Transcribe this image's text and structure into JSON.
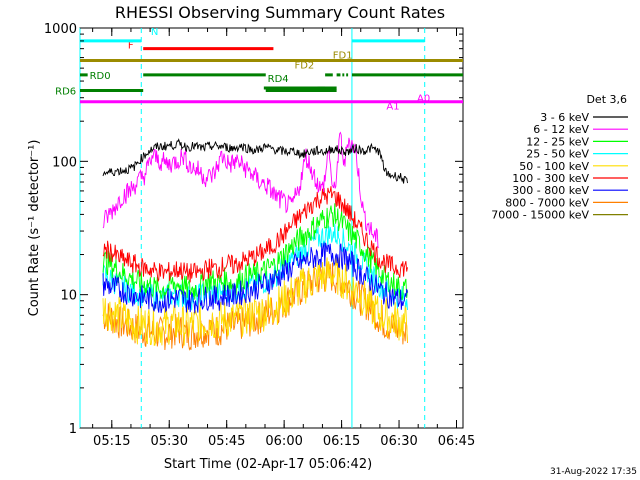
{
  "chart_data": {
    "type": "line",
    "title": "RHESSI Observing Summary Count Rates",
    "xlabel": "Start Time (02-Apr-17 05:06:42)",
    "ylabel": "Count Rate (s⁻¹ detector⁻¹)",
    "y_scale": "log",
    "xlim_minutes": [
      0,
      100
    ],
    "ylim": [
      1,
      1000
    ],
    "x_ticks": [
      {
        "t": 8.3,
        "label": "05:15"
      },
      {
        "t": 23.3,
        "label": "05:30"
      },
      {
        "t": 38.3,
        "label": "05:45"
      },
      {
        "t": 53.3,
        "label": "06:00"
      },
      {
        "t": 68.3,
        "label": "06:15"
      },
      {
        "t": 83.3,
        "label": "06:30"
      },
      {
        "t": 98.3,
        "label": "06:45"
      }
    ],
    "y_ticks": [
      {
        "v": 1,
        "label": "1"
      },
      {
        "v": 10,
        "label": "10"
      },
      {
        "v": 100,
        "label": "100"
      },
      {
        "v": 1000,
        "label": "1000"
      }
    ],
    "legend_title": "Det 3,6",
    "legend_position": "right",
    "series": [
      {
        "name": "3 - 6 keV",
        "color": "#000000",
        "x": [
          6,
          6.2,
          8,
          10,
          12,
          14,
          16,
          18,
          20,
          22,
          24,
          26,
          28,
          30,
          32,
          34,
          36,
          38,
          40,
          42,
          44,
          46,
          48,
          50,
          52,
          54,
          56,
          58,
          60,
          62,
          64,
          66,
          68,
          70,
          72,
          74,
          76,
          78,
          80,
          82,
          84,
          85.5
        ],
        "y": [
          80,
          82,
          83,
          85,
          86,
          90,
          105,
          120,
          128,
          130,
          132,
          135,
          128,
          130,
          125,
          130,
          130,
          128,
          125,
          130,
          125,
          120,
          128,
          125,
          120,
          118,
          120,
          112,
          118,
          120,
          118,
          125,
          120,
          118,
          125,
          120,
          125,
          120,
          80,
          78,
          76,
          68
        ]
      },
      {
        "name": "6 - 12 keV",
        "color": "#ff00ff",
        "x": [
          6,
          7,
          9,
          11,
          13,
          15,
          17,
          19,
          21,
          23,
          25,
          27,
          29,
          31,
          33,
          35,
          37,
          39,
          41,
          43,
          45,
          47,
          49,
          51,
          53,
          55,
          57,
          59,
          61,
          63,
          64,
          65,
          66,
          67,
          68,
          69,
          70,
          72,
          74,
          76,
          78
        ],
        "y": [
          34,
          38,
          45,
          55,
          60,
          70,
          80,
          110,
          100,
          95,
          100,
          110,
          90,
          85,
          75,
          80,
          110,
          95,
          100,
          90,
          80,
          70,
          65,
          55,
          50,
          45,
          60,
          110,
          80,
          60,
          75,
          130,
          55,
          80,
          160,
          90,
          150,
          120,
          40,
          30,
          25
        ]
      },
      {
        "name": "12 - 25 keV",
        "color": "#00ff00",
        "x": [
          6,
          8,
          10,
          12,
          14,
          16,
          18,
          20,
          22,
          24,
          26,
          28,
          30,
          32,
          34,
          36,
          38,
          40,
          42,
          44,
          46,
          48,
          50,
          52,
          54,
          56,
          58,
          60,
          62,
          64,
          66,
          68,
          70,
          72,
          74,
          76,
          78,
          80,
          82,
          84,
          85.5
        ],
        "y": [
          18,
          17,
          15,
          14,
          13,
          12,
          12,
          11,
          11,
          12,
          12,
          11,
          11,
          12,
          13,
          12,
          13,
          12,
          13,
          14,
          14,
          15,
          16,
          18,
          21,
          24,
          27,
          30,
          34,
          38,
          40,
          36,
          30,
          26,
          22,
          18,
          15,
          13,
          12,
          11,
          11
        ]
      },
      {
        "name": "25 - 50 keV",
        "color": "#00ffff",
        "x": [
          6,
          8,
          10,
          12,
          14,
          16,
          18,
          20,
          22,
          24,
          26,
          28,
          30,
          32,
          34,
          36,
          38,
          40,
          42,
          44,
          46,
          48,
          50,
          52,
          54,
          56,
          58,
          60,
          62,
          64,
          66,
          68,
          70,
          72,
          74,
          76,
          78,
          80,
          82,
          84,
          85.5
        ],
        "y": [
          14,
          13,
          12,
          11,
          10.5,
          10,
          10,
          9.5,
          9.5,
          10,
          10,
          9.5,
          9.5,
          10,
          10.5,
          10,
          11,
          10.5,
          11,
          11.5,
          12,
          12.5,
          13,
          15,
          17,
          19,
          21,
          24,
          26,
          28,
          29,
          27,
          23,
          20,
          17,
          14,
          12,
          11,
          10,
          9.5,
          9.5
        ]
      },
      {
        "name": "50 - 100 keV",
        "color": "#ffdd00",
        "x": [
          6,
          8,
          10,
          12,
          14,
          16,
          18,
          20,
          22,
          24,
          26,
          28,
          30,
          32,
          34,
          36,
          38,
          40,
          42,
          44,
          46,
          48,
          50,
          52,
          54,
          56,
          58,
          60,
          62,
          64,
          66,
          68,
          70,
          72,
          74,
          76,
          78,
          80,
          82,
          84,
          85.5
        ],
        "y": [
          8,
          7.5,
          7,
          6.5,
          6,
          6,
          6,
          5.8,
          5.8,
          6,
          6,
          5.8,
          6,
          6.2,
          6.5,
          6.3,
          6.6,
          6.5,
          6.8,
          7,
          7.2,
          7.5,
          8,
          8.5,
          9.5,
          10.5,
          11.5,
          12.5,
          13.5,
          14,
          14.5,
          13.5,
          12,
          11,
          9.5,
          8,
          7.2,
          6.8,
          6.5,
          6.2,
          6
        ]
      },
      {
        "name": "100 - 300 keV",
        "color": "#ff0000",
        "x": [
          6,
          8,
          10,
          12,
          14,
          16,
          18,
          20,
          22,
          24,
          26,
          28,
          30,
          32,
          34,
          36,
          38,
          40,
          42,
          44,
          46,
          48,
          50,
          52,
          54,
          56,
          58,
          60,
          62,
          64,
          66,
          68,
          70,
          72,
          74,
          76,
          78,
          80,
          82,
          84,
          85.5
        ],
        "y": [
          22,
          21,
          19,
          18,
          17,
          16,
          15.5,
          15,
          14.5,
          15,
          15.5,
          14.5,
          14.5,
          15,
          16,
          15.5,
          17,
          16.5,
          17.5,
          18.5,
          19.5,
          21,
          23,
          26,
          30,
          35,
          40,
          46,
          52,
          55,
          56,
          50,
          42,
          35,
          28,
          23,
          19,
          17,
          16,
          16,
          16
        ]
      },
      {
        "name": "300 - 800 keV",
        "color": "#0000ff",
        "x": [
          6,
          8,
          10,
          12,
          14,
          16,
          18,
          20,
          22,
          24,
          26,
          28,
          30,
          32,
          34,
          36,
          38,
          40,
          42,
          44,
          46,
          48,
          50,
          52,
          54,
          56,
          58,
          60,
          62,
          64,
          66,
          68,
          70,
          72,
          74,
          76,
          78,
          80,
          82,
          84,
          85.5
        ],
        "y": [
          12,
          11.5,
          11,
          10.5,
          10,
          9.5,
          9.3,
          9,
          9,
          9.3,
          9.5,
          9,
          9,
          9.3,
          9.6,
          9.3,
          10,
          9.8,
          10.3,
          10.8,
          11.3,
          12,
          12.8,
          13.8,
          15,
          16.5,
          17.5,
          18.5,
          19.5,
          20,
          20.5,
          19.5,
          18,
          16,
          14,
          12.5,
          11,
          10,
          9.5,
          9,
          9
        ]
      },
      {
        "name": "800 - 7000 keV",
        "color": "#ff8000",
        "x": [
          6,
          8,
          10,
          12,
          14,
          16,
          18,
          20,
          22,
          24,
          26,
          28,
          30,
          32,
          34,
          36,
          38,
          40,
          42,
          44,
          46,
          48,
          50,
          52,
          54,
          56,
          58,
          60,
          62,
          64,
          66,
          68,
          70,
          72,
          74,
          76,
          78,
          80,
          82,
          84,
          85.5
        ],
        "y": [
          7,
          6.8,
          6.2,
          6,
          5.6,
          5.4,
          5.3,
          5.1,
          5.1,
          5.3,
          5.4,
          5.1,
          5.2,
          5.4,
          5.6,
          5.4,
          5.8,
          5.7,
          6,
          6.3,
          6.6,
          7,
          7.5,
          8.2,
          9,
          10,
          11,
          12,
          13,
          13.5,
          13.8,
          12.8,
          11.5,
          10,
          9,
          8,
          6.8,
          6,
          5.6,
          5.4,
          5.2
        ]
      },
      {
        "name": "7000 - 15000 keV",
        "color": "#808000",
        "x": [],
        "y": []
      }
    ],
    "state_bars": [
      {
        "label": "F",
        "color": "#ff0000",
        "segments": [
          [
            16.5,
            50.5
          ]
        ],
        "level": 700
      },
      {
        "label": "N",
        "color": "#00ffff",
        "segments": [
          [
            0,
            16
          ],
          [
            71,
            90
          ]
        ],
        "level": 800
      },
      {
        "label": "FD1",
        "color": "#9b8b00",
        "segments": [
          [
            0,
            100
          ]
        ],
        "level": 570
      },
      {
        "label": "FD2",
        "color": "#9b8b00",
        "segments": [],
        "level": 570
      },
      {
        "label": "RD0",
        "color": "#007f00",
        "segments": [
          [
            0,
            2
          ],
          [
            16.5,
            48.5
          ],
          [
            64,
            66
          ],
          [
            67,
            68
          ],
          [
            68.5,
            69
          ],
          [
            69.5,
            70
          ],
          [
            71,
            100
          ]
        ],
        "level": 445
      },
      {
        "label": "RD4",
        "color": "#007f00",
        "segments": [
          [
            48,
            67
          ],
          [
            62,
            64
          ]
        ],
        "level": 355
      },
      {
        "label": "RD6",
        "color": "#007f00",
        "segments": [
          [
            0,
            16.5
          ],
          [
            48.5,
            67
          ]
        ],
        "level": 340
      },
      {
        "label": "A1",
        "color": "#ff00ff",
        "segments": [
          [
            0,
            100
          ]
        ],
        "level": 280
      },
      {
        "label": "A0",
        "color": "#ff00ff",
        "segments": [],
        "level": 280
      }
    ],
    "vlines": [
      {
        "t": 0,
        "style": "solid",
        "color": "#00ffff"
      },
      {
        "t": 16,
        "style": "dashed",
        "color": "#00ffff"
      },
      {
        "t": 71,
        "style": "solid",
        "color": "#00ffff"
      },
      {
        "t": 90,
        "style": "dashed",
        "color": "#00ffff"
      }
    ]
  },
  "footer_date": "31-Aug-2022 17:35"
}
